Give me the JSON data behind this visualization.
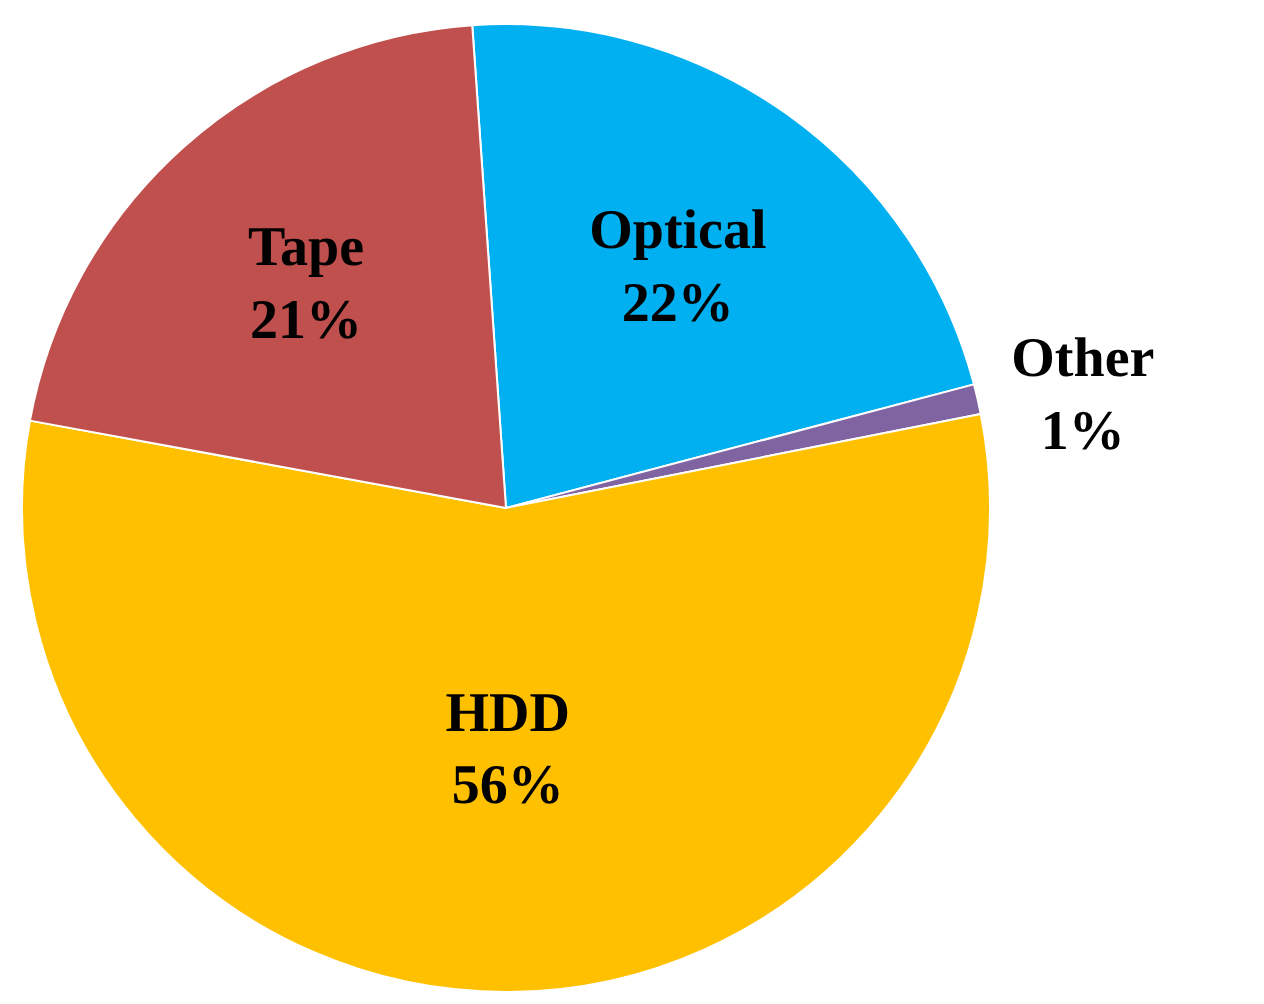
{
  "chart_data": {
    "type": "pie",
    "categories": [
      "Optical",
      "Other",
      "HDD",
      "Tape"
    ],
    "values": [
      22,
      1,
      56,
      21
    ],
    "value_labels": [
      "22%",
      "1%",
      "56%",
      "21%"
    ],
    "colors": [
      "#00b0f0",
      "#8064a2",
      "#ffc000",
      "#c0504d"
    ]
  }
}
